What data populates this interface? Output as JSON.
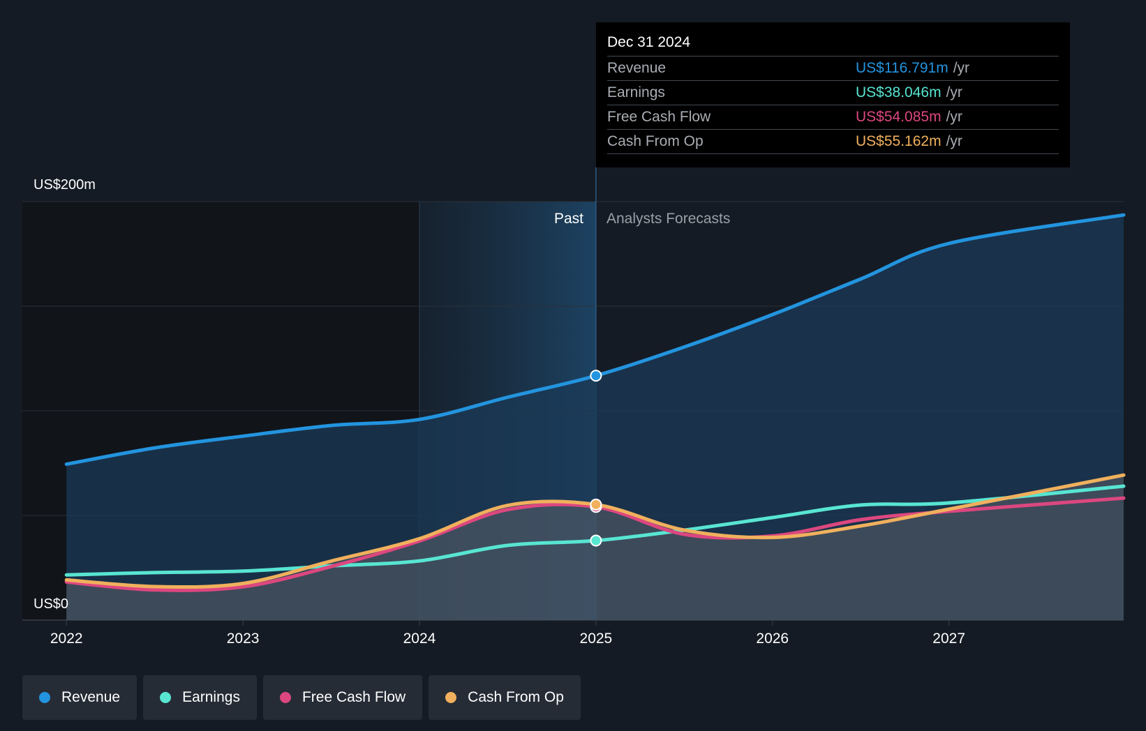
{
  "chart_data": {
    "type": "area",
    "y_axis": {
      "top_label": "US$200m",
      "bottom_label": "US$0",
      "ylim": [
        0,
        200
      ]
    },
    "x_ticks": [
      "2022",
      "2023",
      "2024",
      "2025",
      "2026",
      "2027"
    ],
    "xlim": [
      2021.75,
      2027.99
    ],
    "past_label": "Past",
    "forecast_label": "Analysts Forecasts",
    "split_x": 2025.0,
    "highlight_start_x": 2024.0,
    "series": [
      {
        "name": "Revenue",
        "color": "#2394df",
        "points": [
          [
            2022.0,
            74.5
          ],
          [
            2022.5,
            82.3
          ],
          [
            2023.0,
            87.9
          ],
          [
            2023.5,
            93.0
          ],
          [
            2024.0,
            95.9
          ],
          [
            2024.5,
            106.5
          ],
          [
            2025.0,
            116.8
          ],
          [
            2025.5,
            130.5
          ],
          [
            2026.0,
            146.0
          ],
          [
            2026.5,
            163.0
          ],
          [
            2027.0,
            180.0
          ],
          [
            2027.99,
            193.6
          ]
        ]
      },
      {
        "name": "Earnings",
        "color": "#58e5d2",
        "points": [
          [
            2022.0,
            21.6
          ],
          [
            2022.5,
            22.7
          ],
          [
            2023.0,
            23.4
          ],
          [
            2023.5,
            25.9
          ],
          [
            2024.0,
            28.3
          ],
          [
            2024.5,
            35.7
          ],
          [
            2025.0,
            38.0
          ],
          [
            2025.5,
            43.0
          ],
          [
            2026.0,
            49.0
          ],
          [
            2026.5,
            55.0
          ],
          [
            2027.0,
            56.0
          ],
          [
            2027.99,
            64.0
          ]
        ]
      },
      {
        "name": "Free Cash Flow",
        "color": "#dc477f",
        "points": [
          [
            2022.0,
            18.2
          ],
          [
            2022.5,
            14.4
          ],
          [
            2023.0,
            15.9
          ],
          [
            2023.5,
            25.6
          ],
          [
            2024.0,
            37.8
          ],
          [
            2024.5,
            52.8
          ],
          [
            2025.0,
            54.1
          ],
          [
            2025.5,
            41.0
          ],
          [
            2026.0,
            40.2
          ],
          [
            2026.5,
            48.0
          ],
          [
            2027.0,
            52.0
          ],
          [
            2027.99,
            58.3
          ]
        ]
      },
      {
        "name": "Cash From Op",
        "color": "#f0b05d",
        "points": [
          [
            2022.0,
            19.2
          ],
          [
            2022.5,
            16.0
          ],
          [
            2023.0,
            17.5
          ],
          [
            2023.5,
            28.2
          ],
          [
            2024.0,
            38.9
          ],
          [
            2024.5,
            54.8
          ],
          [
            2025.0,
            55.2
          ],
          [
            2025.5,
            43.0
          ],
          [
            2026.0,
            39.5
          ],
          [
            2026.5,
            45.0
          ],
          [
            2027.0,
            53.0
          ],
          [
            2027.99,
            69.3
          ]
        ]
      }
    ]
  },
  "tooltip": {
    "date": "Dec 31 2024",
    "rows": [
      {
        "label": "Revenue",
        "value": "US$116.791m",
        "unit": "/yr",
        "color": "#2394df"
      },
      {
        "label": "Earnings",
        "value": "US$38.046m",
        "unit": "/yr",
        "color": "#58e5d2"
      },
      {
        "label": "Free Cash Flow",
        "value": "US$54.085m",
        "unit": "/yr",
        "color": "#dc477f"
      },
      {
        "label": "Cash From Op",
        "value": "US$55.162m",
        "unit": "/yr",
        "color": "#f0b05d"
      }
    ]
  },
  "legend": [
    {
      "label": "Revenue",
      "color": "#2394df"
    },
    {
      "label": "Earnings",
      "color": "#58e5d2"
    },
    {
      "label": "Free Cash Flow",
      "color": "#dc477f"
    },
    {
      "label": "Cash From Op",
      "color": "#f0b05d"
    }
  ]
}
